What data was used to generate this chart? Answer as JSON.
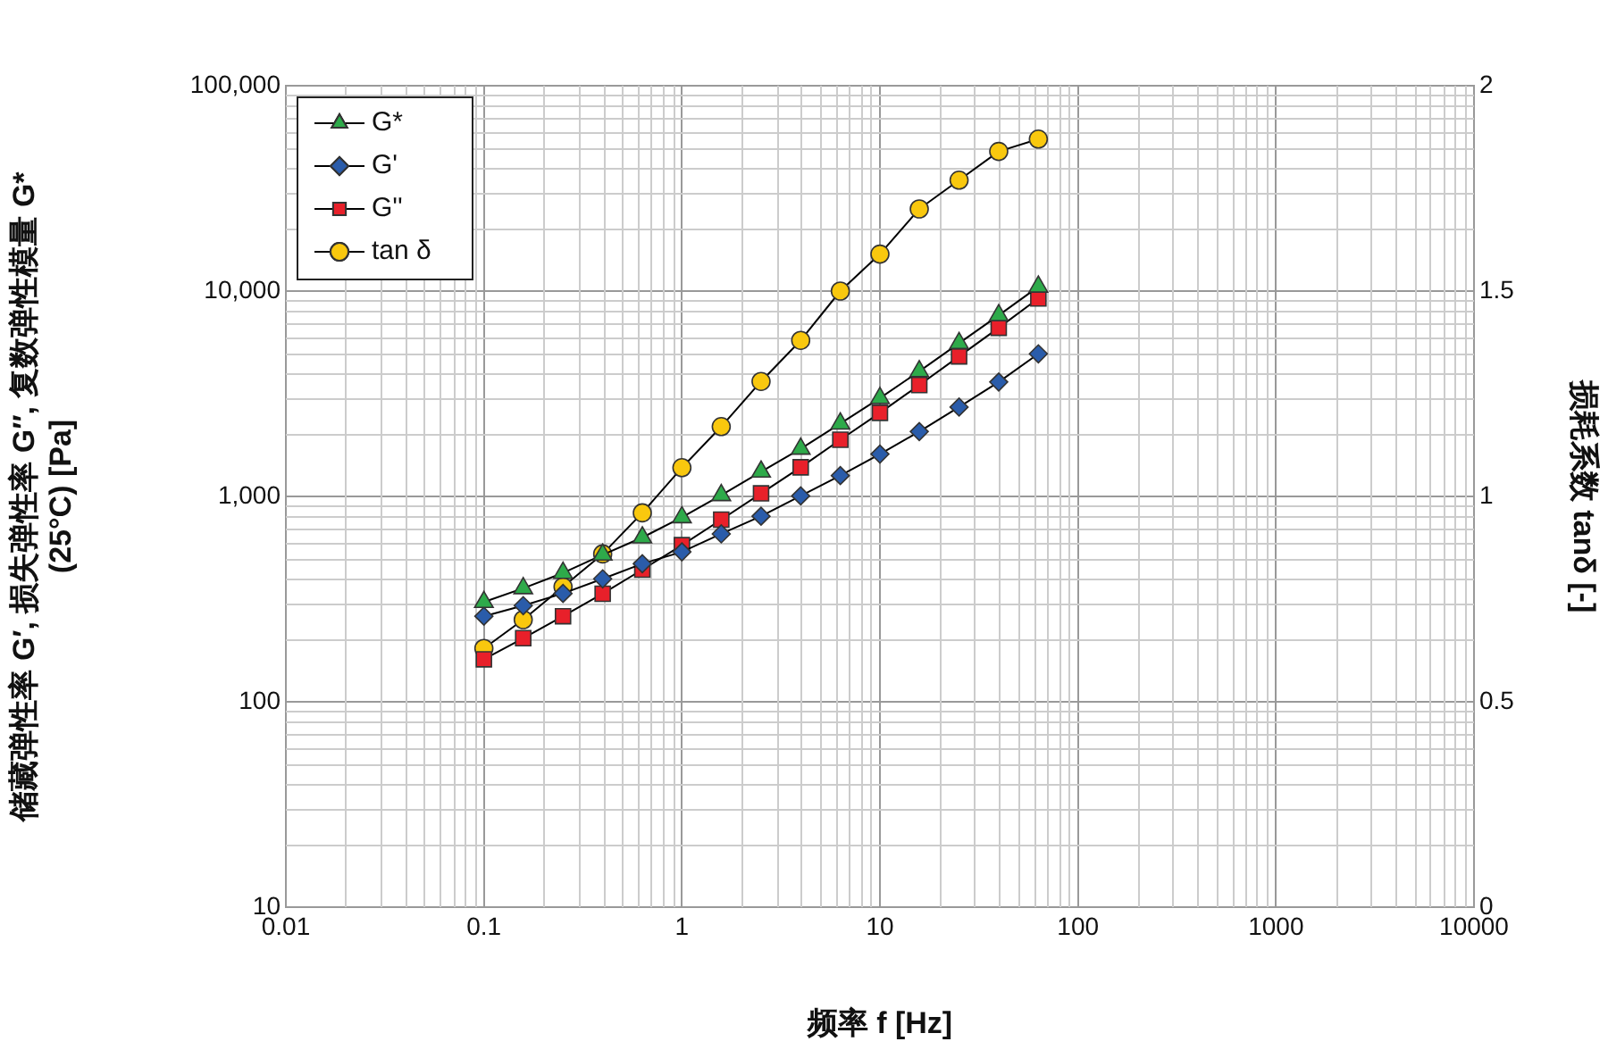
{
  "chart_data": {
    "type": "line",
    "xlabel": "频率 f [Hz]",
    "ylabel": "储藏弹性率 G′, 损失弹性率 G′′, 复数弹性模量 G*",
    "subtitle": "(25°C) [Pa]",
    "y2label": "损耗系数 tanδ [-]",
    "x": [
      0.1,
      0.158,
      0.251,
      0.398,
      0.631,
      1,
      1.58,
      2.51,
      3.98,
      6.31,
      10,
      15.8,
      25.1,
      39.8,
      63.1
    ],
    "series": [
      {
        "name": "G*",
        "color": "#2eaa4a",
        "marker": "triangle",
        "values": [
          306,
          357,
          424,
          520,
          631,
          791,
          1014,
          1320,
          1707,
          2262,
          3013,
          4067,
          5572,
          7620,
          10500
        ]
      },
      {
        "name": "G'",
        "color": "#2a5caa",
        "marker": "diamond",
        "values": [
          261,
          294,
          337,
          397,
          470,
          537,
          657,
          801,
          1006,
          1263,
          1607,
          2070,
          2723,
          3608,
          4947
        ]
      },
      {
        "name": "G''",
        "color": "#e8202a",
        "marker": "square",
        "values": [
          161,
          204,
          261,
          336,
          440,
          579,
          771,
          1035,
          1386,
          1888,
          2553,
          3487,
          4807,
          6622,
          9205
        ]
      },
      {
        "name": "tan δ",
        "color": "#f9c80e",
        "marker": "circle",
        "axis": "y2",
        "values": [
          0.63,
          0.7,
          0.78,
          0.86,
          0.96,
          1.07,
          1.17,
          1.28,
          1.38,
          1.5,
          1.59,
          1.7,
          1.77,
          1.84,
          1.87
        ]
      }
    ],
    "log": "xy",
    "xlim": [
      0.01,
      10000
    ],
    "xticks": [
      0.01,
      0.1,
      1,
      10,
      100,
      1000,
      10000
    ],
    "ylim": [
      10,
      100000
    ],
    "yticks": [
      10,
      100,
      {
        "value": 1000,
        "label": "1,000"
      },
      {
        "value": 10000,
        "label": "10,000"
      },
      {
        "value": 100000,
        "label": "100,000"
      }
    ],
    "y2lim": [
      0,
      2
    ],
    "y2ticks": [
      0,
      0.5,
      1,
      1.5,
      2
    ],
    "grid": true,
    "legend": "top left",
    "line_style": "solid"
  }
}
